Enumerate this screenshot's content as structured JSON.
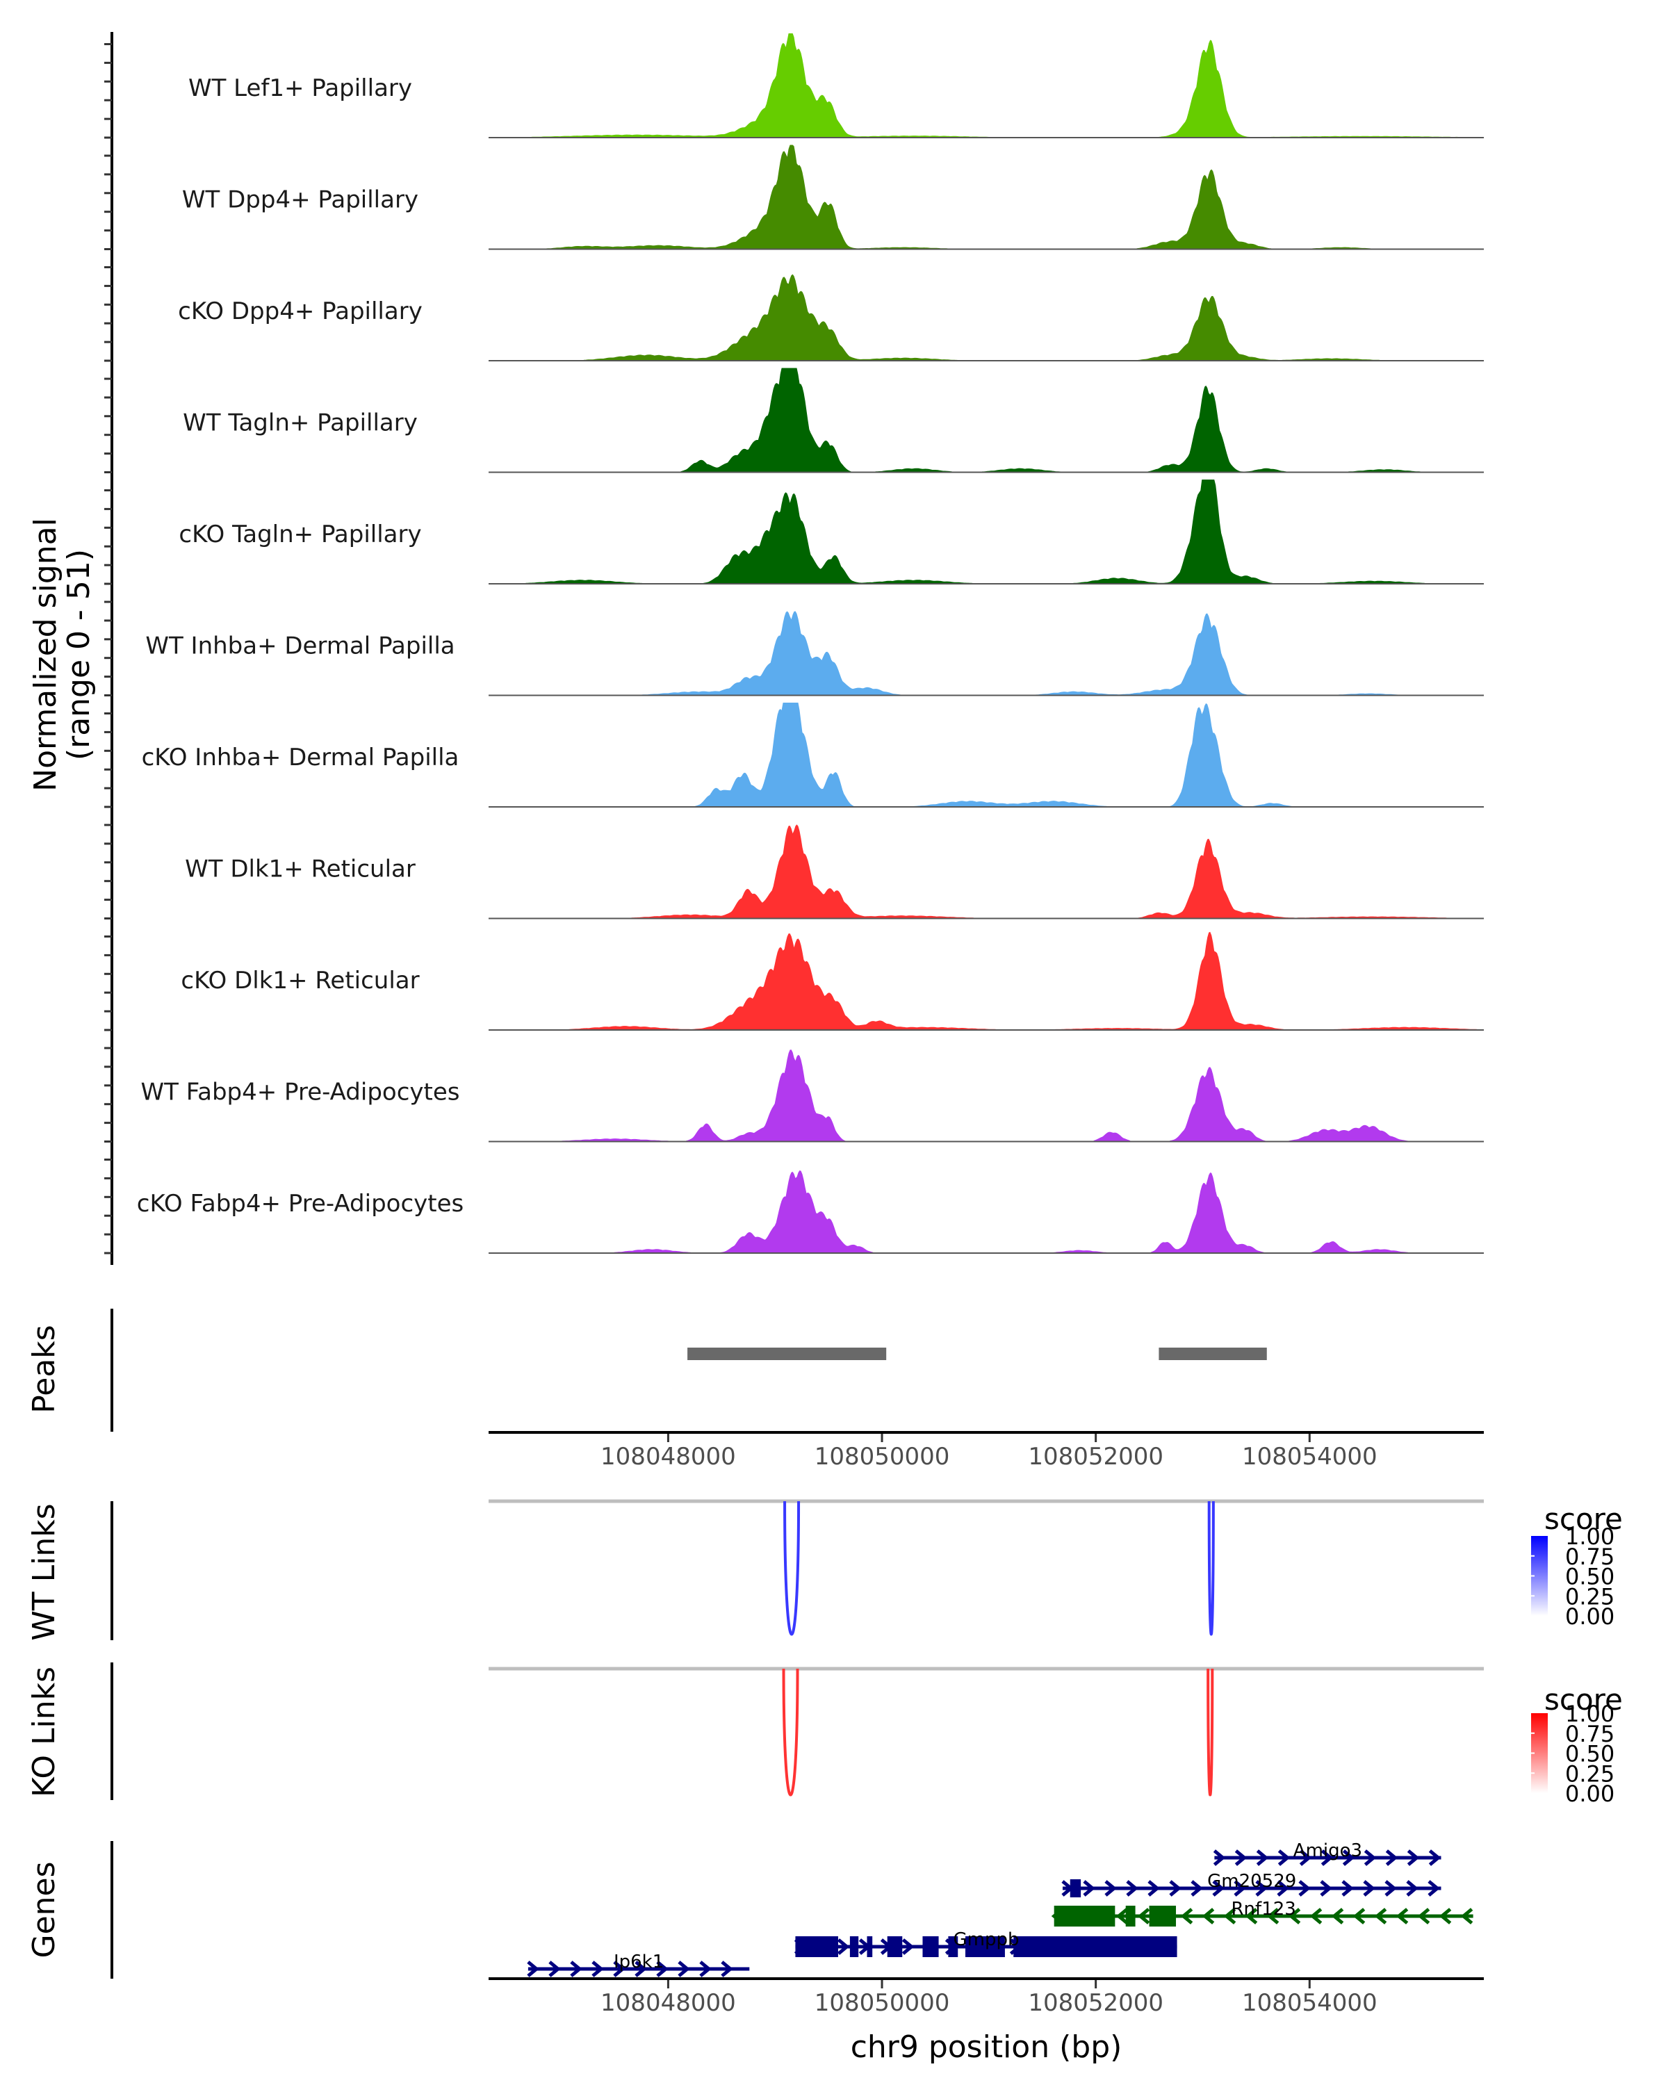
{
  "chart_data": {
    "type": "area",
    "title": "",
    "region": {
      "chrom": "chr9",
      "start": 108046320,
      "end": 108055630
    },
    "xlabel": "chr9 position (bp)",
    "xticks": [
      108048000,
      108050000,
      108052000,
      108054000
    ],
    "xtick_labels": [
      "108048000",
      "108050000",
      "108052000",
      "108054000"
    ],
    "coverage": {
      "ylabel_line1": "Normalized signal",
      "ylabel_line2": "(range 0 - 51)",
      "ylim": [
        0,
        51
      ],
      "tracks": [
        {
          "name": "WT Lef1+ Papillary",
          "color": "#66CD00",
          "peaks": [
            [
              108049150,
              50,
              130
            ],
            [
              108049480,
              18,
              90
            ],
            [
              108048900,
              8,
              200
            ],
            [
              108053060,
              47,
              110
            ],
            [
              108052900,
              3,
              150
            ],
            [
              108047700,
              1.5,
              600
            ],
            [
              108050300,
              1,
              500
            ],
            [
              108054500,
              0.8,
              700
            ]
          ]
        },
        {
          "name": "WT Dpp4+ Papillary",
          "color": "#458B00",
          "peaks": [
            [
              108049150,
              49,
              130
            ],
            [
              108049500,
              23,
              80
            ],
            [
              108048900,
              10,
              200
            ],
            [
              108053060,
              40,
              110
            ],
            [
              108052700,
              4,
              150
            ],
            [
              108053400,
              3,
              120
            ],
            [
              108047900,
              2,
              300
            ],
            [
              108047200,
              1.5,
              200
            ],
            [
              108050200,
              1,
              300
            ],
            [
              108054300,
              1,
              200
            ]
          ]
        },
        {
          "name": "cKO Dpp4+ Papillary",
          "color": "#458B00",
          "peaks": [
            [
              108049150,
              40,
              160
            ],
            [
              108049500,
              14,
              100
            ],
            [
              108048800,
              13,
              200
            ],
            [
              108053060,
              33,
              120
            ],
            [
              108052700,
              3,
              150
            ],
            [
              108053400,
              2,
              120
            ],
            [
              108047800,
              3,
              300
            ],
            [
              108050200,
              1.5,
              300
            ],
            [
              108054200,
              1.2,
              300
            ]
          ]
        },
        {
          "name": "WT Tagln+ Papillary",
          "color": "#006400",
          "peaks": [
            [
              108049180,
              50,
              110
            ],
            [
              108049000,
              30,
              120
            ],
            [
              108049500,
              15,
              80
            ],
            [
              108048700,
              10,
              130
            ],
            [
              108048300,
              6,
              80
            ],
            [
              108053050,
              44,
              100
            ],
            [
              108052700,
              4,
              100
            ],
            [
              108053600,
              2,
              100
            ],
            [
              108050300,
              2,
              200
            ],
            [
              108051300,
              2,
              200
            ],
            [
              108054700,
              1.5,
              200
            ]
          ]
        },
        {
          "name": "cKO Tagln+ Papillary",
          "color": "#006400",
          "peaks": [
            [
              108049170,
              40,
              120
            ],
            [
              108048950,
              22,
              130
            ],
            [
              108049550,
              14,
              80
            ],
            [
              108048650,
              14,
              120
            ],
            [
              108053070,
              50,
              90
            ],
            [
              108052950,
              24,
              100
            ],
            [
              108053400,
              4,
              120
            ],
            [
              108052200,
              3,
              200
            ],
            [
              108047200,
              2,
              300
            ],
            [
              108050300,
              2,
              300
            ],
            [
              108054600,
              1.5,
              300
            ]
          ]
        },
        {
          "name": "WT Inhba+ Dermal Papilla",
          "color": "#5CACEE",
          "peaks": [
            [
              108049150,
              43,
              140
            ],
            [
              108049500,
              19,
              90
            ],
            [
              108048750,
              8,
              120
            ],
            [
              108049850,
              4,
              150
            ],
            [
              108053050,
              40,
              120
            ],
            [
              108052650,
              3,
              200
            ],
            [
              108051800,
              2,
              200
            ],
            [
              108048300,
              2,
              300
            ],
            [
              108054550,
              1,
              200
            ]
          ]
        },
        {
          "name": "cKO Inhba+ Dermal Papilla",
          "color": "#5CACEE",
          "peaks": [
            [
              108049180,
              48,
              120
            ],
            [
              108049050,
              26,
              100
            ],
            [
              108049550,
              18,
              70
            ],
            [
              108048700,
              17,
              90
            ],
            [
              108048450,
              9,
              80
            ],
            [
              108053050,
              43,
              110
            ],
            [
              108052930,
              20,
              80
            ],
            [
              108050800,
              3,
              250
            ],
            [
              108051600,
              3,
              250
            ],
            [
              108053650,
              2,
              100
            ]
          ]
        },
        {
          "name": "WT Dlk1+ Reticular",
          "color": "#FF3030",
          "peaks": [
            [
              108049170,
              48,
              130
            ],
            [
              108048750,
              14,
              90
            ],
            [
              108049550,
              14,
              100
            ],
            [
              108053050,
              39,
              110
            ],
            [
              108052600,
              3,
              100
            ],
            [
              108053450,
              3,
              150
            ],
            [
              108048200,
              2,
              300
            ],
            [
              108050200,
              1.5,
              400
            ],
            [
              108054600,
              1,
              500
            ]
          ]
        },
        {
          "name": "cKO Dlk1+ Reticular",
          "color": "#FF3030",
          "peaks": [
            [
              108049170,
              45,
              170
            ],
            [
              108048800,
              14,
              200
            ],
            [
              108049550,
              13,
              100
            ],
            [
              108049950,
              4,
              100
            ],
            [
              108053070,
              48,
              100
            ],
            [
              108053450,
              3,
              150
            ],
            [
              108047600,
              2,
              300
            ],
            [
              108050400,
              1.5,
              400
            ],
            [
              108052200,
              1,
              400
            ],
            [
              108054900,
              1.5,
              400
            ]
          ]
        },
        {
          "name": "WT Fabp4+ Pre-Adipocytes",
          "color": "#B23AEE",
          "peaks": [
            [
              108049170,
              46,
              140
            ],
            [
              108049500,
              10,
              60
            ],
            [
              108048350,
              9,
              70
            ],
            [
              108048750,
              4,
              100
            ],
            [
              108053050,
              37,
              120
            ],
            [
              108053400,
              6,
              80
            ],
            [
              108052150,
              5,
              80
            ],
            [
              108054150,
              6,
              150
            ],
            [
              108054550,
              8,
              150
            ],
            [
              108047500,
              1.5,
              300
            ]
          ]
        },
        {
          "name": "cKO Fabp4+ Pre-Adipocytes",
          "color": "#B23AEE",
          "peaks": [
            [
              108049200,
              42,
              140
            ],
            [
              108049500,
              14,
              80
            ],
            [
              108048750,
              10,
              100
            ],
            [
              108049750,
              4,
              80
            ],
            [
              108053060,
              40,
              110
            ],
            [
              108052650,
              6,
              60
            ],
            [
              108053400,
              4,
              80
            ],
            [
              108054200,
              6,
              80
            ],
            [
              108047850,
              2,
              200
            ],
            [
              108054650,
              2,
              150
            ],
            [
              108051850,
              1.5,
              150
            ]
          ]
        }
      ]
    },
    "peaks_track": {
      "label": "Peaks",
      "color": "#696969",
      "regions": [
        [
          108048180,
          108050040
        ],
        [
          108052590,
          108053600
        ]
      ]
    },
    "links_tracks": [
      {
        "label": "WT Links",
        "legend_title": "score",
        "color_high": "#0000FF",
        "color_low": "#FFFFFF",
        "legend_ticks": [
          "1.00",
          "0.75",
          "0.50",
          "0.25",
          "0.00"
        ],
        "links": [
          {
            "start": 108049090,
            "end": 108049220,
            "score": 0.78
          },
          {
            "start": 108053060,
            "end": 108053100,
            "score": 0.78
          }
        ]
      },
      {
        "label": "KO Links",
        "legend_title": "score",
        "color_high": "#FF0000",
        "color_low": "#FFFFFF",
        "legend_ticks": [
          "1.00",
          "0.75",
          "0.50",
          "0.25",
          "0.00"
        ],
        "links": [
          {
            "start": 108049080,
            "end": 108049210,
            "score": 0.8
          },
          {
            "start": 108053050,
            "end": 108053090,
            "score": 0.8
          }
        ]
      }
    ],
    "genes_track": {
      "label": "Genes",
      "genes": [
        {
          "name": "Amigo3",
          "strand": "+",
          "color": "#000080",
          "row": 0,
          "start": 108053110,
          "end": 108055230,
          "exons": []
        },
        {
          "name": "Gm20529",
          "strand": "+",
          "color": "#000080",
          "row": 1,
          "start": 108051690,
          "end": 108055230,
          "exons": [
            [
              108051760,
              108051860
            ]
          ]
        },
        {
          "name": "Rnf123",
          "strand": "-",
          "color": "#006400",
          "row": 2,
          "start": 108051610,
          "end": 108055530,
          "exons": [
            [
              108051610,
              108052180
            ],
            [
              108052280,
              108052370
            ],
            [
              108052500,
              108052750
            ]
          ]
        },
        {
          "name": "Gmppb",
          "strand": "+",
          "color": "#000080",
          "row": 3,
          "start": 108049190,
          "end": 108052760,
          "exons": [
            [
              108049190,
              108049590
            ],
            [
              108049700,
              108049780
            ],
            [
              108049860,
              108049910
            ],
            [
              108050050,
              108050190
            ],
            [
              108050380,
              108050530
            ],
            [
              108050620,
              108050710
            ],
            [
              108050780,
              108051150
            ],
            [
              108051230,
              108052760
            ]
          ]
        },
        {
          "name": "Ip6k1",
          "strand": "+",
          "color": "#000080",
          "row": 4,
          "start": 108046690,
          "end": 108048760,
          "exons": []
        }
      ]
    }
  }
}
